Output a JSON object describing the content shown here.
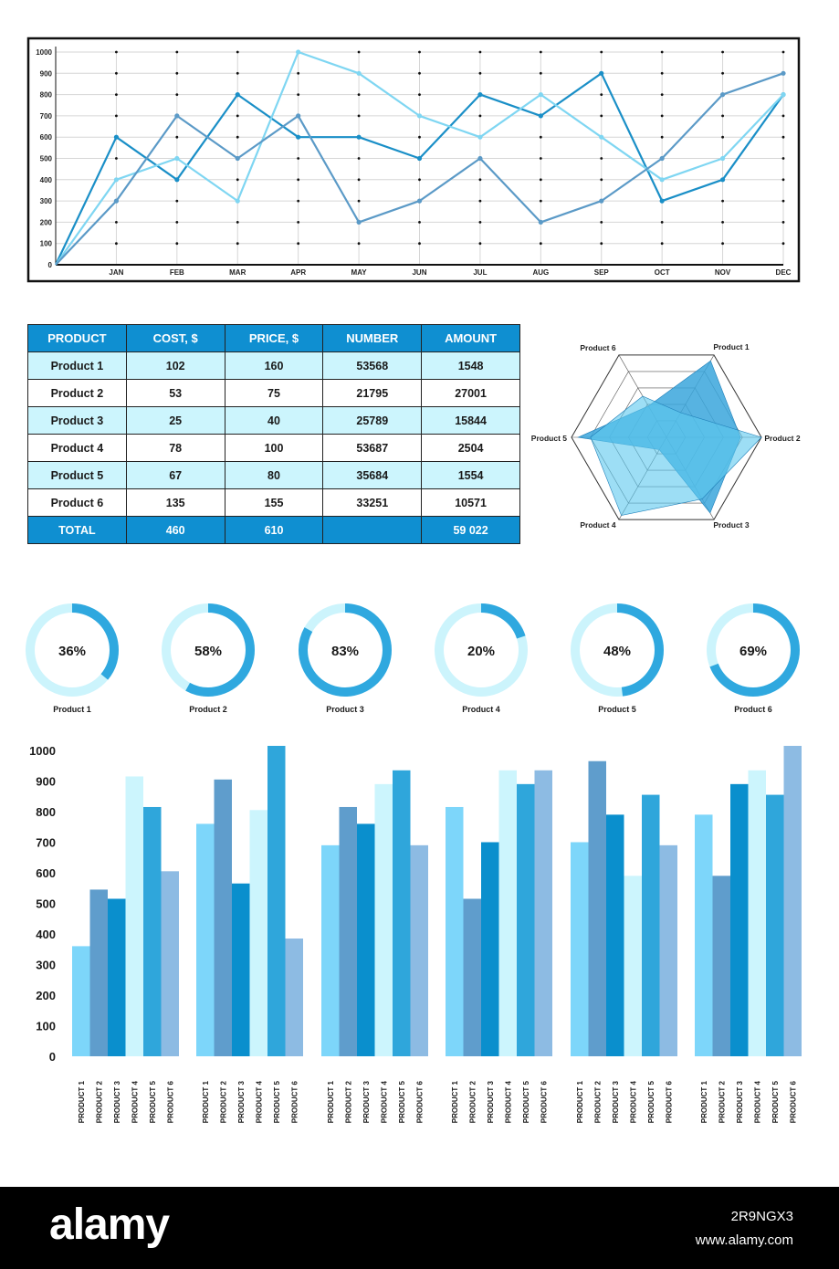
{
  "chart_data": [
    {
      "type": "line",
      "categories": [
        "JAN",
        "FEB",
        "MAR",
        "APR",
        "MAY",
        "JUN",
        "JUL",
        "AUG",
        "SEP",
        "OCT",
        "NOV",
        "DEC"
      ],
      "x_start_value": 0,
      "ylim": [
        0,
        1000
      ],
      "yticks": [
        0,
        100,
        200,
        300,
        400,
        500,
        600,
        700,
        800,
        900,
        1000
      ],
      "grid": true,
      "series": [
        {
          "color": "#1a8fc7",
          "values": [
            600,
            400,
            800,
            600,
            600,
            500,
            800,
            700,
            900,
            300,
            400,
            800
          ]
        },
        {
          "color": "#7fd6f2",
          "values": [
            400,
            500,
            300,
            1000,
            900,
            700,
            600,
            800,
            600,
            400,
            500,
            800
          ]
        },
        {
          "color": "#5b9ac7",
          "values": [
            300,
            700,
            500,
            700,
            200,
            300,
            500,
            200,
            300,
            500,
            800,
            900
          ]
        }
      ]
    },
    {
      "type": "table",
      "columns": [
        "PRODUCT",
        "COST, $",
        "PRICE, $",
        "NUMBER",
        "AMOUNT"
      ],
      "rows": [
        [
          "Product 1",
          "102",
          "160",
          "53568",
          "1548"
        ],
        [
          "Product 2",
          "53",
          "75",
          "21795",
          "27001"
        ],
        [
          "Product 3",
          "25",
          "40",
          "25789",
          "15844"
        ],
        [
          "Product 4",
          "78",
          "100",
          "53687",
          "2504"
        ],
        [
          "Product 5",
          "67",
          "80",
          "35684",
          "1554"
        ],
        [
          "Product 6",
          "135",
          "155",
          "33251",
          "10571"
        ]
      ],
      "total": [
        "TOTAL",
        "460",
        "610",
        "",
        "59 022"
      ]
    },
    {
      "type": "radar",
      "axes": [
        "Product 1",
        "Product 2",
        "Product 3",
        "Product 4",
        "Product 5",
        "Product 6"
      ],
      "max": 1,
      "series": [
        {
          "color": "#3aa6dc",
          "values": [
            0.93,
            0.78,
            0.92,
            0.15,
            0.93,
            0.38
          ]
        },
        {
          "color": "#5cc8ee",
          "values": [
            0.3,
            1.0,
            0.75,
            0.95,
            0.8,
            0.5
          ]
        }
      ]
    },
    {
      "type": "donut",
      "items": [
        {
          "label": "Product 1",
          "value": 36,
          "text": "36%"
        },
        {
          "label": "Product 2",
          "value": 58,
          "text": "58%"
        },
        {
          "label": "Product 3",
          "value": 83,
          "text": "83%"
        },
        {
          "label": "Product 4",
          "value": 20,
          "text": "20%"
        },
        {
          "label": "Product 5",
          "value": 48,
          "text": "48%"
        },
        {
          "label": "Product 6",
          "value": 69,
          "text": "69%"
        }
      ],
      "colors": {
        "track": "#ccf4fc",
        "fill": "#2fa8df"
      }
    },
    {
      "type": "bar",
      "ylim": [
        0,
        1000
      ],
      "yticks": [
        0,
        100,
        200,
        300,
        400,
        500,
        600,
        700,
        800,
        900,
        1000
      ],
      "bar_labels": [
        "PRODUCT 1",
        "PRODUCT 2",
        "PRODUCT 3",
        "PRODUCT 4",
        "PRODUCT 5",
        "PRODUCT 6"
      ],
      "bar_colors": [
        "#7dd6fa",
        "#5f9dcc",
        "#0a8fcd",
        "#ccf5fd",
        "#2fa6db",
        "#8dbbe3"
      ],
      "groups": [
        [
          360,
          545,
          515,
          915,
          815,
          605
        ],
        [
          760,
          905,
          565,
          805,
          1015,
          385
        ],
        [
          690,
          815,
          760,
          890,
          935,
          690
        ],
        [
          815,
          515,
          700,
          935,
          890,
          935
        ],
        [
          700,
          965,
          790,
          590,
          855,
          690
        ],
        [
          790,
          590,
          890,
          935,
          855,
          1015
        ]
      ]
    }
  ],
  "footer": {
    "logo": "alamy",
    "image_id": "2R9NGX3",
    "site": "www.alamy.com"
  }
}
